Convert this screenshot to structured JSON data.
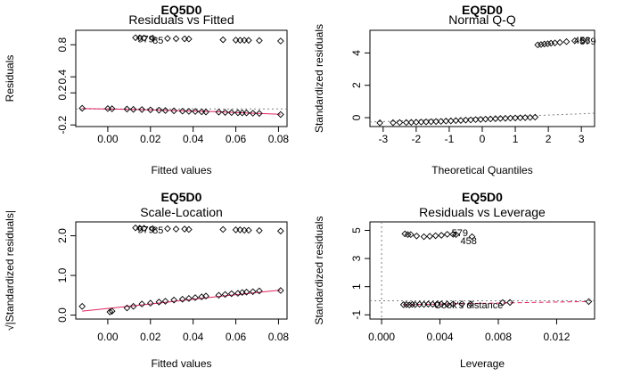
{
  "figure": {
    "background": "#ffffff",
    "point_color": "#000000",
    "smooth_color": "#e0245e",
    "reference_color": "#808080"
  },
  "chart_data": [
    {
      "type": "scatter",
      "id": "resid_fitted",
      "main_title": "EQ5D0",
      "title": "Residuals vs Fitted",
      "xlabel": "Fitted values",
      "ylabel": "Residuals",
      "xlim": [
        -0.015,
        0.084
      ],
      "ylim": [
        -0.22,
        0.98
      ],
      "xticks": [
        0.0,
        0.02,
        0.04,
        0.06,
        0.08
      ],
      "xtick_labels": [
        "0.00",
        "0.02",
        "0.04",
        "0.06",
        "0.08"
      ],
      "yticks": [
        -0.2,
        0.2,
        0.4,
        0.8
      ],
      "ytick_labels": [
        "-0.2",
        "0.2",
        "0.4",
        "0.8"
      ],
      "points": [
        {
          "x": -0.012,
          "y": 0.008
        },
        {
          "x": 0.0,
          "y": 0.004
        },
        {
          "x": 0.002,
          "y": 0.002
        },
        {
          "x": 0.009,
          "y": -0.002
        },
        {
          "x": 0.012,
          "y": -0.006
        },
        {
          "x": 0.016,
          "y": -0.008
        },
        {
          "x": 0.02,
          "y": -0.012
        },
        {
          "x": 0.024,
          "y": -0.016
        },
        {
          "x": 0.027,
          "y": -0.02
        },
        {
          "x": 0.031,
          "y": -0.024
        },
        {
          "x": 0.035,
          "y": -0.028
        },
        {
          "x": 0.038,
          "y": -0.03
        },
        {
          "x": 0.041,
          "y": -0.032
        },
        {
          "x": 0.044,
          "y": -0.036
        },
        {
          "x": 0.046,
          "y": -0.038
        },
        {
          "x": 0.052,
          "y": -0.04
        },
        {
          "x": 0.055,
          "y": -0.044
        },
        {
          "x": 0.058,
          "y": -0.046
        },
        {
          "x": 0.061,
          "y": -0.048
        },
        {
          "x": 0.063,
          "y": -0.05
        },
        {
          "x": 0.065,
          "y": -0.05
        },
        {
          "x": 0.068,
          "y": -0.054
        },
        {
          "x": 0.071,
          "y": -0.056
        },
        {
          "x": 0.081,
          "y": -0.07
        },
        {
          "x": 0.013,
          "y": 0.888
        },
        {
          "x": 0.015,
          "y": 0.886
        },
        {
          "x": 0.017,
          "y": 0.884
        },
        {
          "x": 0.021,
          "y": 0.882
        },
        {
          "x": 0.028,
          "y": 0.878
        },
        {
          "x": 0.032,
          "y": 0.876
        },
        {
          "x": 0.036,
          "y": 0.874
        },
        {
          "x": 0.038,
          "y": 0.872
        },
        {
          "x": 0.054,
          "y": 0.862
        },
        {
          "x": 0.06,
          "y": 0.858
        },
        {
          "x": 0.062,
          "y": 0.856
        },
        {
          "x": 0.064,
          "y": 0.856
        },
        {
          "x": 0.066,
          "y": 0.855
        },
        {
          "x": 0.071,
          "y": 0.852
        },
        {
          "x": 0.081,
          "y": 0.846
        }
      ],
      "smooth": [
        {
          "x": -0.012,
          "y": 0.006
        },
        {
          "x": 0.02,
          "y": -0.012
        },
        {
          "x": 0.05,
          "y": -0.035
        },
        {
          "x": 0.081,
          "y": -0.068
        }
      ],
      "reference_line_y": 0,
      "annotations": [
        {
          "text": "579",
          "x": 0.014,
          "y": 0.872
        },
        {
          "text": "85",
          "x": 0.021,
          "y": 0.858
        }
      ]
    },
    {
      "type": "scatter",
      "id": "normal_qq",
      "main_title": "EQ5D0",
      "title": "Normal Q-Q",
      "xlabel": "Theoretical Quantiles",
      "ylabel": "Standardized residuals",
      "xlim": [
        -3.4,
        3.4
      ],
      "ylim": [
        -0.55,
        5.4
      ],
      "xticks": [
        -3,
        -2,
        -1,
        0,
        1,
        2,
        3
      ],
      "xtick_labels": [
        "-3",
        "-2",
        "-1",
        "0",
        "1",
        "2",
        "3"
      ],
      "yticks": [
        0,
        2,
        4
      ],
      "ytick_labels": [
        "0",
        "2",
        "4"
      ],
      "points": [
        {
          "x": -3.1,
          "y": -0.32
        },
        {
          "x": -2.7,
          "y": -0.31
        },
        {
          "x": -2.5,
          "y": -0.3
        },
        {
          "x": -2.3,
          "y": -0.3
        },
        {
          "x": -2.15,
          "y": -0.29
        },
        {
          "x": -2.0,
          "y": -0.28
        },
        {
          "x": -1.85,
          "y": -0.27
        },
        {
          "x": -1.7,
          "y": -0.26
        },
        {
          "x": -1.55,
          "y": -0.25
        },
        {
          "x": -1.4,
          "y": -0.24
        },
        {
          "x": -1.25,
          "y": -0.23
        },
        {
          "x": -1.1,
          "y": -0.21
        },
        {
          "x": -0.95,
          "y": -0.2
        },
        {
          "x": -0.8,
          "y": -0.18
        },
        {
          "x": -0.65,
          "y": -0.17
        },
        {
          "x": -0.5,
          "y": -0.15
        },
        {
          "x": -0.35,
          "y": -0.14
        },
        {
          "x": -0.2,
          "y": -0.12
        },
        {
          "x": -0.05,
          "y": -0.11
        },
        {
          "x": 0.1,
          "y": -0.09
        },
        {
          "x": 0.25,
          "y": -0.08
        },
        {
          "x": 0.4,
          "y": -0.06
        },
        {
          "x": 0.55,
          "y": -0.05
        },
        {
          "x": 0.7,
          "y": -0.04
        },
        {
          "x": 0.85,
          "y": -0.03
        },
        {
          "x": 1.0,
          "y": -0.02
        },
        {
          "x": 1.15,
          "y": -0.01
        },
        {
          "x": 1.3,
          "y": 0.0
        },
        {
          "x": 1.45,
          "y": 0.01
        },
        {
          "x": 1.6,
          "y": 0.03
        },
        {
          "x": 1.68,
          "y": 4.5
        },
        {
          "x": 1.78,
          "y": 4.52
        },
        {
          "x": 1.88,
          "y": 4.55
        },
        {
          "x": 1.98,
          "y": 4.57
        },
        {
          "x": 2.08,
          "y": 4.6
        },
        {
          "x": 2.2,
          "y": 4.62
        },
        {
          "x": 2.35,
          "y": 4.65
        },
        {
          "x": 2.55,
          "y": 4.7
        },
        {
          "x": 2.8,
          "y": 4.75
        },
        {
          "x": 3.05,
          "y": 4.78
        }
      ],
      "reference_line": {
        "intercept": 0.0,
        "slope": 0.08
      },
      "annotations": [
        {
          "text": "458",
          "x": 2.78,
          "y": 4.8
        },
        {
          "text": "579",
          "x": 2.95,
          "y": 4.75
        }
      ]
    },
    {
      "type": "scatter",
      "id": "scale_location",
      "main_title": "EQ5D0",
      "title": "Scale-Location",
      "xlabel": "Fitted values",
      "ylabel": "√|Standardized residuals|",
      "xlim": [
        -0.015,
        0.084
      ],
      "ylim": [
        -0.1,
        2.35
      ],
      "xticks": [
        0.0,
        0.02,
        0.04,
        0.06,
        0.08
      ],
      "xtick_labels": [
        "0.00",
        "0.02",
        "0.04",
        "0.06",
        "0.08"
      ],
      "yticks": [
        0.0,
        1.0,
        2.0
      ],
      "ytick_labels": [
        "0.0",
        "1.0",
        "2.0"
      ],
      "points": [
        {
          "x": -0.012,
          "y": 0.22
        },
        {
          "x": 0.001,
          "y": 0.08
        },
        {
          "x": 0.002,
          "y": 0.1
        },
        {
          "x": 0.009,
          "y": 0.18
        },
        {
          "x": 0.012,
          "y": 0.22
        },
        {
          "x": 0.016,
          "y": 0.28
        },
        {
          "x": 0.02,
          "y": 0.3
        },
        {
          "x": 0.024,
          "y": 0.33
        },
        {
          "x": 0.027,
          "y": 0.35
        },
        {
          "x": 0.031,
          "y": 0.38
        },
        {
          "x": 0.035,
          "y": 0.4
        },
        {
          "x": 0.038,
          "y": 0.42
        },
        {
          "x": 0.041,
          "y": 0.44
        },
        {
          "x": 0.044,
          "y": 0.46
        },
        {
          "x": 0.046,
          "y": 0.48
        },
        {
          "x": 0.052,
          "y": 0.5
        },
        {
          "x": 0.055,
          "y": 0.52
        },
        {
          "x": 0.058,
          "y": 0.54
        },
        {
          "x": 0.061,
          "y": 0.55
        },
        {
          "x": 0.063,
          "y": 0.57
        },
        {
          "x": 0.065,
          "y": 0.58
        },
        {
          "x": 0.068,
          "y": 0.59
        },
        {
          "x": 0.071,
          "y": 0.61
        },
        {
          "x": 0.081,
          "y": 0.62
        },
        {
          "x": 0.013,
          "y": 2.2
        },
        {
          "x": 0.015,
          "y": 2.19
        },
        {
          "x": 0.017,
          "y": 2.19
        },
        {
          "x": 0.021,
          "y": 2.18
        },
        {
          "x": 0.028,
          "y": 2.18
        },
        {
          "x": 0.032,
          "y": 2.17
        },
        {
          "x": 0.036,
          "y": 2.17
        },
        {
          "x": 0.038,
          "y": 2.16
        },
        {
          "x": 0.054,
          "y": 2.16
        },
        {
          "x": 0.06,
          "y": 2.15
        },
        {
          "x": 0.062,
          "y": 2.15
        },
        {
          "x": 0.064,
          "y": 2.14
        },
        {
          "x": 0.066,
          "y": 2.14
        },
        {
          "x": 0.071,
          "y": 2.13
        },
        {
          "x": 0.081,
          "y": 2.12
        }
      ],
      "smooth": [
        {
          "x": -0.012,
          "y": 0.1
        },
        {
          "x": 0.02,
          "y": 0.28
        },
        {
          "x": 0.05,
          "y": 0.46
        },
        {
          "x": 0.081,
          "y": 0.63
        }
      ],
      "annotations": [
        {
          "text": "579",
          "x": 0.014,
          "y": 2.16
        },
        {
          "text": "85",
          "x": 0.021,
          "y": 2.15
        }
      ]
    },
    {
      "type": "scatter",
      "id": "resid_leverage",
      "main_title": "EQ5D0",
      "title": "Residuals vs Leverage",
      "xlabel": "Leverage",
      "ylabel": "Standardized residuals",
      "xlim": [
        -0.0008,
        0.0146
      ],
      "ylim": [
        -1.3,
        5.6
      ],
      "xticks": [
        0.0,
        0.004,
        0.008,
        0.012
      ],
      "xtick_labels": [
        "0.000",
        "0.004",
        "0.008",
        "0.012"
      ],
      "yticks": [
        -1,
        1,
        3,
        5
      ],
      "ytick_labels": [
        "-1",
        "1",
        "3",
        "5"
      ],
      "points": [
        {
          "x": 0.0016,
          "y": 4.75
        },
        {
          "x": 0.0018,
          "y": 4.7
        },
        {
          "x": 0.002,
          "y": 4.7
        },
        {
          "x": 0.0024,
          "y": 4.6
        },
        {
          "x": 0.0029,
          "y": 4.55
        },
        {
          "x": 0.0033,
          "y": 4.58
        },
        {
          "x": 0.0037,
          "y": 4.62
        },
        {
          "x": 0.0041,
          "y": 4.65
        },
        {
          "x": 0.0045,
          "y": 4.72
        },
        {
          "x": 0.0049,
          "y": 4.72
        },
        {
          "x": 0.0051,
          "y": 4.7
        },
        {
          "x": 0.0062,
          "y": 4.55
        },
        {
          "x": 0.0015,
          "y": -0.28
        },
        {
          "x": 0.0017,
          "y": -0.27
        },
        {
          "x": 0.0019,
          "y": -0.3
        },
        {
          "x": 0.0021,
          "y": -0.26
        },
        {
          "x": 0.0023,
          "y": -0.27
        },
        {
          "x": 0.0026,
          "y": -0.25
        },
        {
          "x": 0.0029,
          "y": -0.26
        },
        {
          "x": 0.0032,
          "y": -0.24
        },
        {
          "x": 0.0035,
          "y": -0.25
        },
        {
          "x": 0.0038,
          "y": -0.24
        },
        {
          "x": 0.0041,
          "y": -0.23
        },
        {
          "x": 0.0045,
          "y": -0.24
        },
        {
          "x": 0.0049,
          "y": -0.23
        },
        {
          "x": 0.0055,
          "y": -0.22
        },
        {
          "x": 0.0061,
          "y": -0.22
        },
        {
          "x": 0.0083,
          "y": -0.13
        },
        {
          "x": 0.0088,
          "y": -0.12
        },
        {
          "x": 0.0142,
          "y": -0.06
        }
      ],
      "smooth": [
        {
          "x": 0.0015,
          "y": -0.28
        },
        {
          "x": 0.006,
          "y": -0.2
        },
        {
          "x": 0.0142,
          "y": -0.05
        }
      ],
      "reference_line_y": 0,
      "reference_line_x": 0,
      "annotations": [
        {
          "text": "579",
          "x": 0.0048,
          "y": 4.83
        },
        {
          "text": "458",
          "x": 0.0054,
          "y": 4.26
        },
        {
          "text": "Cook's distance",
          "x": 0.0036,
          "y": -0.3
        }
      ]
    }
  ]
}
